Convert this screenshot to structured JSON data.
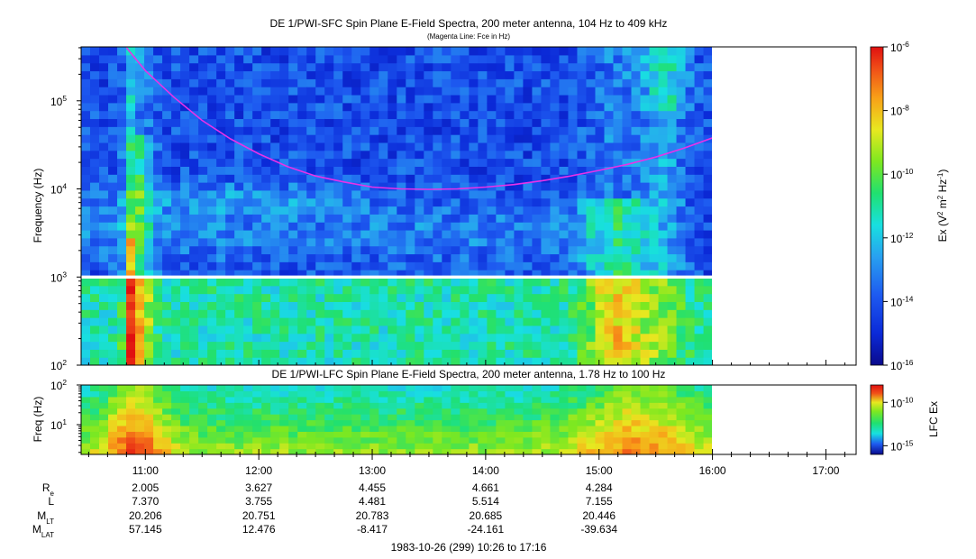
{
  "colors": {
    "background": "#ffffff",
    "fce_line": "#e832e8",
    "colormap": [
      "#0a0a8c",
      "#0b2ad8",
      "#1e5af0",
      "#28a0f0",
      "#18e0e0",
      "#20e070",
      "#7ee820",
      "#e8e820",
      "#f8a018",
      "#f05018",
      "#e01010"
    ]
  },
  "chart_data": [
    {
      "type": "heatmap",
      "title": "DE 1/PWI-SFC  Spin Plane E-Field Spectra, 200 meter antenna, 104 Hz to 409 kHz",
      "subtitle": "(Magenta Line: Fce in Hz)",
      "ylabel": "Frequency (Hz)",
      "y_scale": "log",
      "ylim": [
        100,
        409000
      ],
      "y_ticks": [
        {
          "value": 100,
          "base": "10",
          "exp": "2"
        },
        {
          "value": 1000,
          "base": "10",
          "exp": "3"
        },
        {
          "value": 10000,
          "base": "10",
          "exp": "4"
        },
        {
          "value": 100000,
          "base": "10",
          "exp": "5"
        }
      ],
      "x_data_range": [
        "10:26",
        "16:00"
      ],
      "data_gap_hz": [
        960,
        1040
      ],
      "fce_line": {
        "label": "Fce in Hz",
        "x": [
          "10:50",
          "11:00",
          "11:15",
          "11:30",
          "11:45",
          "12:00",
          "12:15",
          "12:30",
          "12:45",
          "13:00",
          "13:15",
          "13:30",
          "13:45",
          "14:00",
          "14:15",
          "14:30",
          "14:45",
          "15:00",
          "15:15",
          "15:30",
          "15:45",
          "16:00"
        ],
        "y": [
          400000,
          220000,
          110000,
          60000,
          37000,
          25000,
          18000,
          14000,
          12000,
          10500,
          10000,
          9900,
          10000,
          10500,
          11200,
          12400,
          14000,
          16200,
          19000,
          23000,
          29000,
          38000
        ]
      },
      "colorbar": {
        "label_base": "Ex (V",
        "label_sup1": "2",
        "label_mid": " m",
        "label_sup2": "2",
        "label_mid2": " Hz",
        "label_sup3": "-1",
        "label_end": ")",
        "scale": "log",
        "range": [
          1e-16,
          1e-06
        ],
        "ticks": [
          {
            "value": 1e-06,
            "base": "10",
            "exp": "-6"
          },
          {
            "value": 1e-08,
            "base": "10",
            "exp": "-8"
          },
          {
            "value": 1e-10,
            "base": "10",
            "exp": "-10"
          },
          {
            "value": 1e-12,
            "base": "10",
            "exp": "-12"
          },
          {
            "value": 1e-14,
            "base": "10",
            "exp": "-14"
          },
          {
            "value": 1e-16,
            "base": "10",
            "exp": "-16"
          }
        ]
      }
    },
    {
      "type": "heatmap",
      "title": "DE 1/PWI-LFC  Spin Plane E-Field Spectra, 200 meter antenna, 1.78 Hz to 100 Hz",
      "ylabel": "Freq (Hz)",
      "y_scale": "log",
      "ylim": [
        1.78,
        100
      ],
      "y_ticks": [
        {
          "value": 10,
          "base": "10",
          "exp": "1"
        },
        {
          "value": 100,
          "base": "10",
          "exp": "2"
        }
      ],
      "x_data_range": [
        "10:26",
        "16:00"
      ],
      "colorbar": {
        "label": "LFC Ex",
        "scale": "log",
        "range": [
          1e-16,
          1e-08
        ],
        "ticks": [
          {
            "value": 1e-10,
            "base": "10",
            "exp": "-10"
          },
          {
            "value": 1e-15,
            "base": "10",
            "exp": "-15"
          }
        ]
      }
    }
  ],
  "time_axis": {
    "range": [
      "10:26",
      "17:16"
    ],
    "ticks": [
      "11:00",
      "12:00",
      "13:00",
      "14:00",
      "15:00",
      "16:00",
      "17:00"
    ],
    "caption": "1983-10-26 (299) 10:26 to 17:16"
  },
  "ephemeris": [
    {
      "label": "R",
      "sub": "e",
      "values": [
        "2.005",
        "3.627",
        "4.455",
        "4.661",
        "4.284"
      ]
    },
    {
      "label": "L",
      "sub": "",
      "values": [
        "7.370",
        "3.755",
        "4.481",
        "5.514",
        "7.155"
      ]
    },
    {
      "label": "M",
      "sub": "LT",
      "values": [
        "20.206",
        "20.751",
        "20.783",
        "20.685",
        "20.446"
      ]
    },
    {
      "label": "M",
      "sub": "LAT",
      "values": [
        "57.145",
        "12.476",
        "-8.417",
        "-24.161",
        "-39.634"
      ]
    }
  ]
}
